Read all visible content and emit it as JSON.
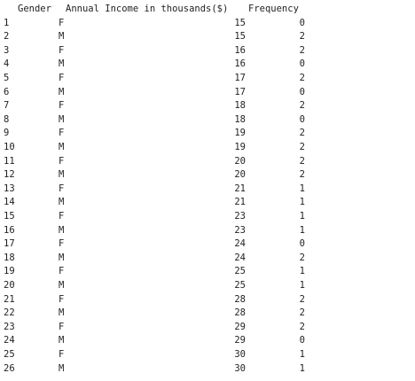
{
  "table": {
    "headers": {
      "gender": "Gender",
      "income": "Annual Income in thousands($)",
      "frequency": "Frequency"
    },
    "rows": [
      {
        "index": "1",
        "gender": "F",
        "income": "15",
        "frequency": "0"
      },
      {
        "index": "2",
        "gender": "M",
        "income": "15",
        "frequency": "2"
      },
      {
        "index": "3",
        "gender": "F",
        "income": "16",
        "frequency": "2"
      },
      {
        "index": "4",
        "gender": "M",
        "income": "16",
        "frequency": "0"
      },
      {
        "index": "5",
        "gender": "F",
        "income": "17",
        "frequency": "2"
      },
      {
        "index": "6",
        "gender": "M",
        "income": "17",
        "frequency": "0"
      },
      {
        "index": "7",
        "gender": "F",
        "income": "18",
        "frequency": "2"
      },
      {
        "index": "8",
        "gender": "M",
        "income": "18",
        "frequency": "0"
      },
      {
        "index": "9",
        "gender": "F",
        "income": "19",
        "frequency": "2"
      },
      {
        "index": "10",
        "gender": "M",
        "income": "19",
        "frequency": "2"
      },
      {
        "index": "11",
        "gender": "F",
        "income": "20",
        "frequency": "2"
      },
      {
        "index": "12",
        "gender": "M",
        "income": "20",
        "frequency": "2"
      },
      {
        "index": "13",
        "gender": "F",
        "income": "21",
        "frequency": "1"
      },
      {
        "index": "14",
        "gender": "M",
        "income": "21",
        "frequency": "1"
      },
      {
        "index": "15",
        "gender": "F",
        "income": "23",
        "frequency": "1"
      },
      {
        "index": "16",
        "gender": "M",
        "income": "23",
        "frequency": "1"
      },
      {
        "index": "17",
        "gender": "F",
        "income": "24",
        "frequency": "0"
      },
      {
        "index": "18",
        "gender": "M",
        "income": "24",
        "frequency": "2"
      },
      {
        "index": "19",
        "gender": "F",
        "income": "25",
        "frequency": "1"
      },
      {
        "index": "20",
        "gender": "M",
        "income": "25",
        "frequency": "1"
      },
      {
        "index": "21",
        "gender": "F",
        "income": "28",
        "frequency": "2"
      },
      {
        "index": "22",
        "gender": "M",
        "income": "28",
        "frequency": "2"
      },
      {
        "index": "23",
        "gender": "F",
        "income": "29",
        "frequency": "2"
      },
      {
        "index": "24",
        "gender": "M",
        "income": "29",
        "frequency": "0"
      },
      {
        "index": "25",
        "gender": "F",
        "income": "30",
        "frequency": "1"
      },
      {
        "index": "26",
        "gender": "M",
        "income": "30",
        "frequency": "1"
      }
    ]
  }
}
